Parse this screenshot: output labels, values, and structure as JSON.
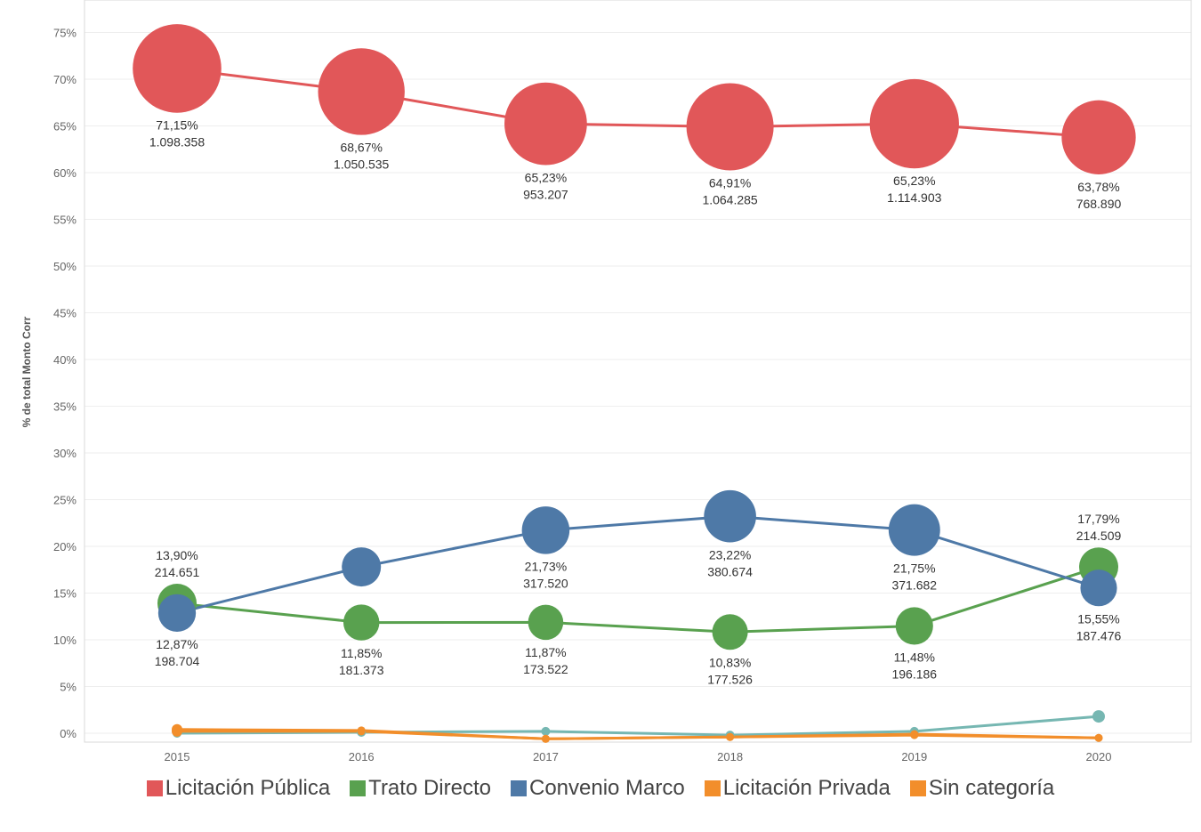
{
  "chart_data": {
    "type": "line",
    "ylabel": "% de total Monto Corr",
    "x": [
      "2015",
      "2016",
      "2017",
      "2018",
      "2019",
      "2020"
    ],
    "ylim": [
      0,
      78
    ],
    "yticks": [
      "0%",
      "5%",
      "10%",
      "15%",
      "20%",
      "25%",
      "30%",
      "35%",
      "40%",
      "45%",
      "50%",
      "55%",
      "60%",
      "65%",
      "70%",
      "75%"
    ],
    "grid": true,
    "legend_position": "bottom",
    "series": [
      {
        "name": "Licitación Pública",
        "color": "#e15759",
        "values": [
          71.15,
          68.67,
          65.23,
          64.91,
          65.23,
          63.78
        ],
        "amounts": [
          1098358,
          1050535,
          953207,
          1064285,
          1114903,
          768890
        ],
        "pct_labels": [
          "71,15%",
          "68,67%",
          "65,23%",
          "64,91%",
          "65,23%",
          "63,78%"
        ],
        "amount_labels": [
          "1.098.358",
          "1.050.535",
          "953.207",
          "1.064.285",
          "1.114.903",
          "768.890"
        ]
      },
      {
        "name": "Trato Directo",
        "color": "#59a14f",
        "values": [
          13.9,
          11.85,
          11.87,
          10.83,
          11.48,
          17.79
        ],
        "amounts": [
          214651,
          181373,
          173522,
          177526,
          196186,
          214509
        ],
        "pct_labels": [
          "13,90%",
          "11,85%",
          "11,87%",
          "10,83%",
          "11,48%",
          "17,79%"
        ],
        "amount_labels": [
          "214.651",
          "181.373",
          "173.522",
          "177.526",
          "196.186",
          "214.509"
        ]
      },
      {
        "name": "Convenio Marco",
        "color": "#4e79a7",
        "values": [
          12.87,
          17.8,
          21.73,
          23.22,
          21.75,
          15.55
        ],
        "amounts": [
          198704,
          null,
          317520,
          380674,
          371682,
          187476
        ],
        "pct_labels": [
          "12,87%",
          "",
          "21,73%",
          "23,22%",
          "21,75%",
          "15,55%"
        ],
        "amount_labels": [
          "198.704",
          "",
          "317.520",
          "380.674",
          "371.682",
          "187.476"
        ]
      },
      {
        "name": "Licitación Privada",
        "color": "#f28e2b",
        "values": [
          0.2,
          0.2,
          -0.6,
          -0.4,
          -0.2,
          -0.5
        ]
      },
      {
        "name": "Sin categoría",
        "color": "#f28e2b",
        "values": [
          0.4,
          0.3,
          -0.6,
          -0.4,
          -0.1,
          -0.5
        ]
      },
      {
        "name": "",
        "color": "#76b7b2",
        "values": [
          0.0,
          0.1,
          0.2,
          -0.2,
          0.2,
          1.8
        ]
      }
    ]
  },
  "legend": {
    "items": [
      {
        "label": "Licitación Pública",
        "color": "#e15759"
      },
      {
        "label": "Trato Directo",
        "color": "#59a14f"
      },
      {
        "label": "Convenio Marco",
        "color": "#4e79a7"
      },
      {
        "label": "Licitación Privada",
        "color": "#f28e2b"
      },
      {
        "label": "Sin categoría",
        "color": "#f28e2b"
      }
    ]
  }
}
